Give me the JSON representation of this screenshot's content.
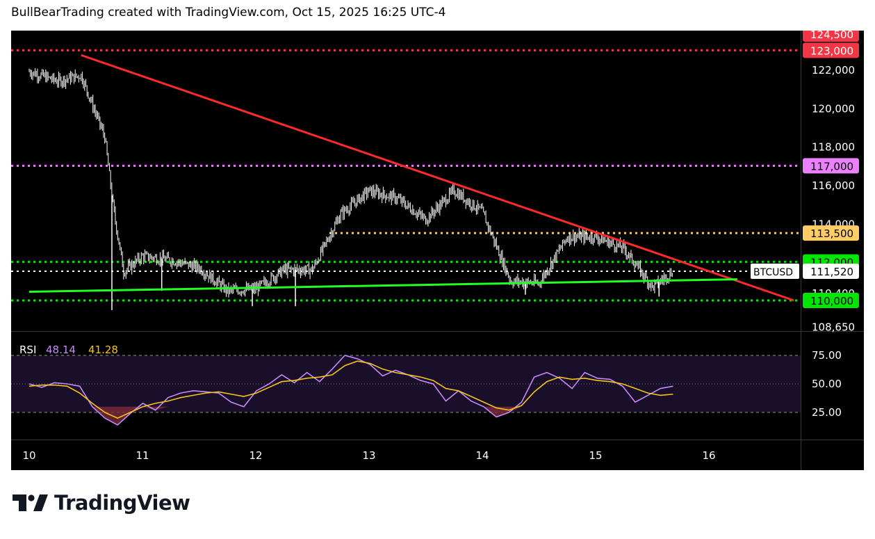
{
  "header": {
    "text": "BullBearTrading created with TradingView.com, Oct 15, 2025 16:25 UTC-4"
  },
  "brand": {
    "name": "TradingView"
  },
  "price_axis": {
    "ticks": [
      "122,000",
      "120,000",
      "118,000",
      "116,000",
      "114,000",
      "110,400",
      "108,650"
    ]
  },
  "price_labels": [
    {
      "text": "124,500",
      "bg": "#f23645",
      "fg": "#ffffff"
    },
    {
      "text": "123,000",
      "bg": "#f23645",
      "fg": "#ffffff"
    },
    {
      "text": "117,000",
      "bg": "#ea80fc",
      "fg": "#000000"
    },
    {
      "text": "113,500",
      "bg": "#ffcc66",
      "fg": "#000000"
    },
    {
      "text": "112,000",
      "bg": "#00e600",
      "fg": "#000000"
    },
    {
      "text": "111,520",
      "bg": "#ffffff",
      "fg": "#000000"
    },
    {
      "text": "110,000",
      "bg": "#00e600",
      "fg": "#000000"
    }
  ],
  "symbol_tag": "BTCUSD",
  "time_axis": {
    "labels": [
      "10",
      "11",
      "12",
      "13",
      "14",
      "15",
      "16"
    ]
  },
  "rsi": {
    "label": "RSI",
    "value": "48.14",
    "ma_value": "41.28",
    "ticks": [
      "75.00",
      "50.00",
      "25.00"
    ],
    "line_color": "#c58af9",
    "ma_color": "#f5c518"
  },
  "chart_data": {
    "type": "line",
    "symbol": "BTCUSD",
    "series": [
      {
        "name": "BTCUSD",
        "x": [
          "Oct 10 00:00",
          "Oct 10 06:00",
          "Oct 10 11:00",
          "Oct 10 16:00",
          "Oct 10 18:00",
          "Oct 10 20:00",
          "Oct 11 00:00",
          "Oct 11 06:00",
          "Oct 11 12:00",
          "Oct 11 18:00",
          "Oct 12 00:00",
          "Oct 12 06:00",
          "Oct 12 12:00",
          "Oct 12 18:00",
          "Oct 13 00:00",
          "Oct 13 06:00",
          "Oct 13 12:00",
          "Oct 13 18:00",
          "Oct 14 00:00",
          "Oct 14 06:00",
          "Oct 14 12:00",
          "Oct 14 18:00",
          "Oct 15 00:00",
          "Oct 15 06:00",
          "Oct 15 12:00",
          "Oct 15 16:25"
        ],
        "values": [
          121900,
          121400,
          121700,
          118500,
          114500,
          111500,
          112300,
          112100,
          111700,
          110500,
          110600,
          111600,
          111600,
          114500,
          115700,
          115300,
          114200,
          115700,
          114600,
          111000,
          110900,
          113300,
          113300,
          112700,
          110700,
          111520
        ]
      }
    ],
    "horizontal_levels": [
      {
        "value": 123000,
        "color": "#f23645",
        "style": "dotted"
      },
      {
        "value": 117000,
        "color": "#ea80fc",
        "style": "dotted"
      },
      {
        "value": 113500,
        "color": "#ffcc66",
        "style": "dotted"
      },
      {
        "value": 112000,
        "color": "#00e600",
        "style": "dotted"
      },
      {
        "value": 111520,
        "color": "#ffffff",
        "style": "dotted"
      },
      {
        "value": 110000,
        "color": "#00e600",
        "style": "dotted"
      }
    ],
    "trendlines": [
      {
        "color": "#ff2a2a",
        "from": {
          "x": "Oct 10 11:00",
          "y": 122750
        },
        "to": {
          "x": "Oct 16 18:00",
          "y": 110000
        }
      },
      {
        "color": "#22ff22",
        "from": {
          "x": "Oct 10 00:00",
          "y": 110450
        },
        "to": {
          "x": "Oct 16 06:00",
          "y": 111100
        }
      }
    ],
    "ylim": [
      108000,
      124700
    ],
    "rsi": {
      "ticks": [
        75,
        50,
        25
      ],
      "ylim": [
        5,
        85
      ],
      "values": [
        50,
        47,
        51,
        50,
        48,
        30,
        20,
        14,
        24,
        33,
        27,
        38,
        42,
        44,
        43,
        42,
        34,
        30,
        44,
        50,
        58,
        51,
        60,
        52,
        63,
        75,
        72,
        67,
        57,
        62,
        58,
        53,
        50,
        35,
        44,
        35,
        30,
        21,
        25,
        34,
        56,
        60,
        55,
        46,
        60,
        55,
        54,
        48,
        34,
        40,
        46,
        48
      ],
      "ma": [
        48,
        49,
        49,
        48,
        42,
        33,
        25,
        20,
        25,
        30,
        33,
        35,
        38,
        40,
        42,
        43,
        41,
        39,
        42,
        47,
        52,
        53,
        55,
        56,
        58,
        66,
        70,
        68,
        63,
        60,
        58,
        56,
        53,
        46,
        44,
        39,
        34,
        29,
        27,
        31,
        43,
        52,
        56,
        54,
        55,
        53,
        52,
        50,
        46,
        42,
        40,
        41
      ]
    }
  }
}
